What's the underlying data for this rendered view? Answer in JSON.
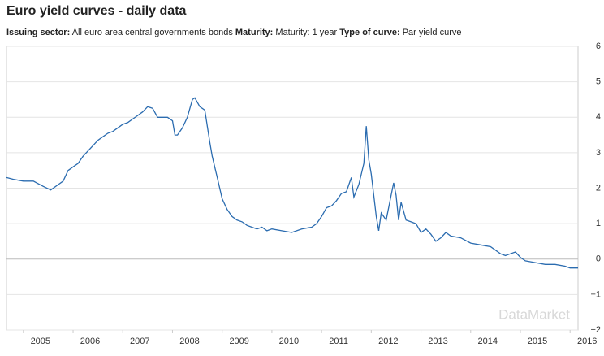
{
  "chart_data": {
    "type": "line",
    "title": "Euro yield curves - daily data",
    "filters": [
      {
        "label": "Issuing sector:",
        "value": "All euro area central governments bonds"
      },
      {
        "label": "Maturity:",
        "value": "Maturity: 1 year"
      },
      {
        "label": "Type of curve:",
        "value": "Par yield curve"
      }
    ],
    "watermark": "DataMarket",
    "xlim": [
      2004.66,
      2016.16
    ],
    "xticks": [
      2005,
      2006,
      2007,
      2008,
      2009,
      2010,
      2011,
      2012,
      2013,
      2014,
      2015,
      2016
    ],
    "ylim": [
      -2,
      6
    ],
    "yticks": [
      {
        "value": -2,
        "label": "−2"
      },
      {
        "value": -1,
        "label": "−1"
      },
      0,
      1,
      2,
      3,
      4,
      5,
      6
    ],
    "grid": true,
    "series": [
      {
        "color": "#2b6cb0",
        "x": [
          2004.66,
          2004.8,
          2005.0,
          2005.2,
          2005.4,
          2005.55,
          2005.7,
          2005.8,
          2005.9,
          2006.0,
          2006.1,
          2006.2,
          2006.3,
          2006.4,
          2006.5,
          2006.6,
          2006.7,
          2006.8,
          2006.9,
          2007.0,
          2007.1,
          2007.2,
          2007.3,
          2007.4,
          2007.5,
          2007.6,
          2007.7,
          2007.8,
          2007.9,
          2008.0,
          2008.05,
          2008.1,
          2008.2,
          2008.3,
          2008.4,
          2008.45,
          2008.55,
          2008.65,
          2008.75,
          2008.8,
          2008.9,
          2009.0,
          2009.1,
          2009.2,
          2009.3,
          2009.4,
          2009.5,
          2009.6,
          2009.7,
          2009.8,
          2009.9,
          2010.0,
          2010.2,
          2010.4,
          2010.6,
          2010.8,
          2010.9,
          2011.0,
          2011.1,
          2011.2,
          2011.3,
          2011.4,
          2011.5,
          2011.6,
          2011.65,
          2011.75,
          2011.85,
          2011.9,
          2011.95,
          2012.0,
          2012.05,
          2012.1,
          2012.15,
          2012.2,
          2012.3,
          2012.4,
          2012.45,
          2012.5,
          2012.55,
          2012.6,
          2012.7,
          2012.8,
          2012.9,
          2013.0,
          2013.1,
          2013.2,
          2013.3,
          2013.4,
          2013.5,
          2013.6,
          2013.8,
          2014.0,
          2014.2,
          2014.4,
          2014.5,
          2014.6,
          2014.7,
          2014.8,
          2014.9,
          2015.0,
          2015.1,
          2015.3,
          2015.5,
          2015.7,
          2015.9,
          2016.0,
          2016.16
        ],
        "values": [
          2.3,
          2.25,
          2.2,
          2.2,
          2.05,
          1.95,
          2.1,
          2.2,
          2.5,
          2.6,
          2.7,
          2.9,
          3.05,
          3.2,
          3.35,
          3.45,
          3.55,
          3.6,
          3.7,
          3.8,
          3.85,
          3.95,
          4.05,
          4.15,
          4.3,
          4.25,
          4.0,
          4.0,
          4.0,
          3.9,
          3.5,
          3.5,
          3.7,
          4.0,
          4.5,
          4.55,
          4.3,
          4.2,
          3.3,
          2.9,
          2.3,
          1.7,
          1.4,
          1.2,
          1.1,
          1.05,
          0.95,
          0.9,
          0.85,
          0.9,
          0.8,
          0.85,
          0.8,
          0.75,
          0.85,
          0.9,
          1.0,
          1.2,
          1.45,
          1.5,
          1.65,
          1.85,
          1.9,
          2.3,
          1.75,
          2.1,
          2.7,
          3.75,
          2.8,
          2.4,
          1.8,
          1.2,
          0.8,
          1.3,
          1.1,
          1.8,
          2.15,
          1.8,
          1.1,
          1.6,
          1.1,
          1.05,
          1.0,
          0.75,
          0.85,
          0.7,
          0.5,
          0.6,
          0.75,
          0.65,
          0.6,
          0.45,
          0.4,
          0.35,
          0.25,
          0.15,
          0.1,
          0.15,
          0.2,
          0.05,
          -0.05,
          -0.1,
          -0.15,
          -0.15,
          -0.2,
          -0.25,
          -0.25
        ]
      }
    ]
  }
}
